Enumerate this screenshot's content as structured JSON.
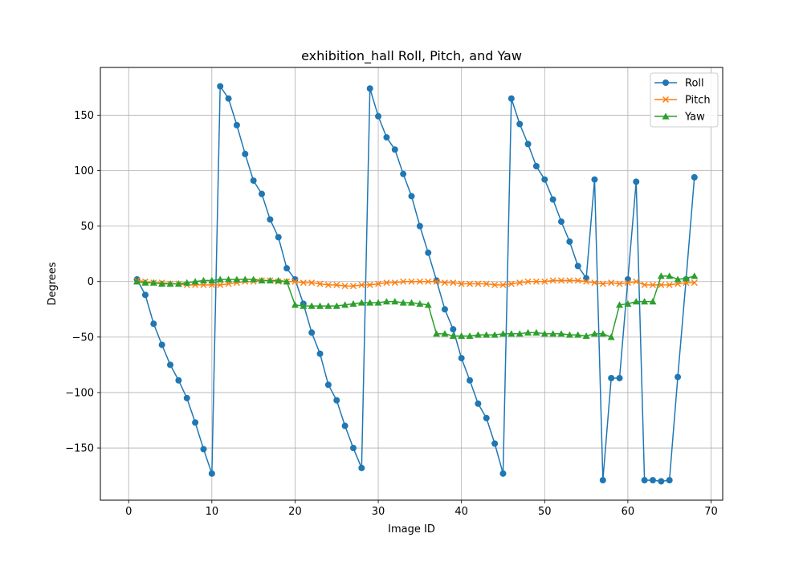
{
  "chart_data": {
    "type": "line",
    "title": "exhibition_hall Roll, Pitch, and Yaw",
    "xlabel": "Image ID",
    "ylabel": "Degrees",
    "xlim": [
      -3.4,
      71.4
    ],
    "ylim": [
      -197,
      193
    ],
    "xticks": [
      0,
      10,
      20,
      30,
      40,
      50,
      60,
      70
    ],
    "yticks": [
      -150,
      -100,
      -50,
      0,
      50,
      100,
      150
    ],
    "grid": true,
    "legend_position": "top-right",
    "x": [
      1,
      2,
      3,
      4,
      5,
      6,
      7,
      8,
      9,
      10,
      11,
      12,
      13,
      14,
      15,
      16,
      17,
      18,
      19,
      20,
      21,
      22,
      23,
      24,
      25,
      26,
      27,
      28,
      29,
      30,
      31,
      32,
      33,
      34,
      35,
      36,
      37,
      38,
      39,
      40,
      41,
      42,
      43,
      44,
      45,
      46,
      47,
      48,
      49,
      50,
      51,
      52,
      53,
      54,
      55,
      56,
      57,
      58,
      59,
      60,
      61,
      62,
      63,
      64,
      65,
      66,
      67,
      68
    ],
    "series": [
      {
        "name": "Roll",
        "color": "#1f77b4",
        "marker": "circle",
        "values": [
          2,
          -12,
          -38,
          -57,
          -75,
          -89,
          -105,
          -127,
          -151,
          -173,
          176,
          165,
          141,
          115,
          91,
          79,
          56,
          40,
          12,
          2,
          -20,
          -46,
          -65,
          -93,
          -107,
          -130,
          -150,
          -168,
          174,
          149,
          130,
          119,
          97,
          77,
          50,
          26,
          1,
          -25,
          -43,
          -69,
          -89,
          -110,
          -123,
          -146,
          -173,
          165,
          142,
          124,
          104,
          92,
          74,
          54,
          36,
          14,
          3,
          92,
          -179,
          -87,
          -87,
          2,
          90,
          -179,
          -179,
          -180,
          -179,
          -86,
          2,
          94
        ]
      },
      {
        "name": "Pitch",
        "color": "#ff7f0e",
        "marker": "x",
        "values": [
          1,
          0,
          -1,
          -1,
          -2,
          -2,
          -3,
          -3,
          -3,
          -3,
          -3,
          -2,
          -1,
          0,
          0,
          1,
          1,
          0,
          0,
          0,
          -1,
          -1,
          -2,
          -3,
          -3,
          -4,
          -4,
          -3,
          -3,
          -2,
          -1,
          -1,
          0,
          0,
          0,
          0,
          0,
          -1,
          -1,
          -2,
          -2,
          -2,
          -2,
          -3,
          -3,
          -2,
          -1,
          0,
          0,
          0,
          1,
          1,
          1,
          1,
          0,
          -1,
          -2,
          -1,
          -2,
          -1,
          0,
          -3,
          -3,
          -3,
          -3,
          -2,
          -1,
          -1
        ]
      },
      {
        "name": "Yaw",
        "color": "#2ca02c",
        "marker": "triangle",
        "values": [
          0,
          -1,
          -1,
          -2,
          -2,
          -2,
          -1,
          0,
          1,
          1,
          2,
          2,
          2,
          2,
          2,
          1,
          1,
          1,
          0,
          -21,
          -22,
          -22,
          -22,
          -22,
          -22,
          -21,
          -20,
          -19,
          -19,
          -19,
          -18,
          -18,
          -19,
          -19,
          -20,
          -21,
          -47,
          -47,
          -49,
          -49,
          -49,
          -48,
          -48,
          -48,
          -47,
          -47,
          -47,
          -46,
          -46,
          -47,
          -47,
          -47,
          -48,
          -48,
          -49,
          -47,
          -47,
          -50,
          -21,
          -20,
          -18,
          -18,
          -18,
          5,
          5,
          2,
          3,
          5
        ]
      }
    ]
  }
}
